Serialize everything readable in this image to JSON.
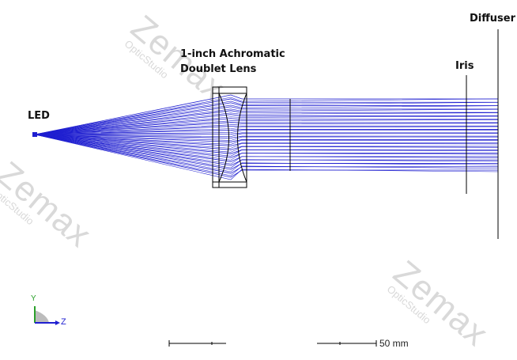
{
  "labels": {
    "led": "LED",
    "lens_line1": "1-inch Achromatic",
    "lens_line2": "Doublet Lens",
    "iris": "Iris",
    "diffuser": "Diffuser"
  },
  "watermark": {
    "brand": "Zemax",
    "product": "OpticStudio"
  },
  "axes": {
    "y": "Y",
    "z": "Z"
  },
  "scale_bar": {
    "label": "50 mm"
  },
  "colors": {
    "rays": "#1f1fd0",
    "lines": "#000000",
    "axis_y": "#2aa02a",
    "axis_z": "#1f1fd0",
    "watermark": "#d9d9d9"
  }
}
